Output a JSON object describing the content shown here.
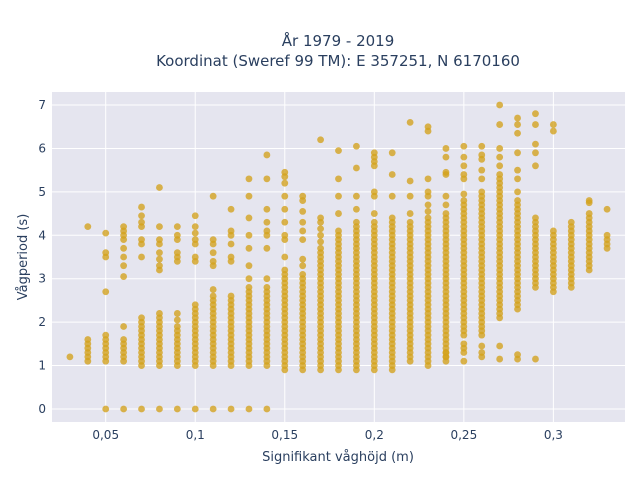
{
  "chart_data": {
    "type": "scatter",
    "title_line1": "År 1979 - 2019",
    "title_line2": "Koordinat (Sweref 99 TM): E 357251, N 6170160",
    "xlabel": "Signifikant våghöjd (m)",
    "ylabel": "Vågperiod (s)",
    "xlim": [
      0.02,
      0.34
    ],
    "ylim": [
      -0.3,
      7.3
    ],
    "x_ticks": [
      0.05,
      0.1,
      0.15,
      0.2,
      0.25,
      0.3
    ],
    "x_tick_labels": [
      "0,05",
      "0,1",
      "0,15",
      "0,2",
      "0,25",
      "0,3"
    ],
    "y_ticks": [
      0,
      1,
      2,
      3,
      4,
      5,
      6,
      7
    ],
    "y_tick_labels": [
      "0",
      "1",
      "2",
      "3",
      "4",
      "5",
      "6",
      "7"
    ],
    "grid": true,
    "colors": {
      "marker": "#d4a21b",
      "plot_bg": "#e5e5ef",
      "grid": "#ffffff",
      "text": "#2a3f5f"
    },
    "columns": [
      {
        "x": 0.03,
        "bands": [
          [
            1.2,
            1.2
          ]
        ],
        "points": []
      },
      {
        "x": 0.04,
        "bands": [
          [
            1.1,
            1.6
          ]
        ],
        "points": [
          4.2
        ]
      },
      {
        "x": 0.05,
        "bands": [
          [
            1.1,
            1.7
          ]
        ],
        "points": [
          0,
          2.7,
          3.5,
          3.6,
          4.05
        ]
      },
      {
        "x": 0.06,
        "bands": [
          [
            1.1,
            1.6
          ]
        ],
        "points": [
          0,
          1.9,
          3.05,
          3.3,
          3.5,
          3.7,
          3.9,
          4.0,
          4.1,
          4.2
        ]
      },
      {
        "x": 0.07,
        "bands": [
          [
            1.0,
            2.1
          ]
        ],
        "points": [
          0,
          3.5,
          3.8,
          3.9,
          4.2,
          4.3,
          4.45,
          4.65
        ]
      },
      {
        "x": 0.08,
        "bands": [
          [
            1.0,
            2.2
          ]
        ],
        "points": [
          0,
          3.2,
          3.3,
          3.45,
          3.6,
          3.8,
          3.9,
          4.2,
          5.1
        ]
      },
      {
        "x": 0.09,
        "bands": [
          [
            1.0,
            1.9
          ]
        ],
        "points": [
          0,
          2.05,
          2.2,
          3.4,
          3.5,
          3.6,
          3.9,
          4.0,
          4.2
        ]
      },
      {
        "x": 0.1,
        "bands": [
          [
            1.0,
            2.4
          ]
        ],
        "points": [
          0,
          3.4,
          3.5,
          3.8,
          3.9,
          4.05,
          4.2,
          4.45
        ]
      },
      {
        "x": 0.11,
        "bands": [
          [
            1.0,
            2.6
          ]
        ],
        "points": [
          0,
          2.75,
          3.3,
          3.4,
          3.6,
          3.8,
          3.9,
          4.9
        ]
      },
      {
        "x": 0.12,
        "bands": [
          [
            1.0,
            2.6
          ]
        ],
        "points": [
          0,
          3.4,
          3.5,
          3.8,
          4.0,
          4.1,
          4.6
        ]
      },
      {
        "x": 0.13,
        "bands": [
          [
            1.0,
            2.8
          ]
        ],
        "points": [
          0,
          3.0,
          3.3,
          3.7,
          4.0,
          4.4,
          4.9,
          5.3
        ]
      },
      {
        "x": 0.14,
        "bands": [
          [
            1.0,
            2.7
          ]
        ],
        "points": [
          0,
          2.8,
          3.0,
          3.7,
          4.0,
          4.1,
          4.3,
          4.6,
          5.3,
          5.85
        ]
      },
      {
        "x": 0.15,
        "bands": [
          [
            0.9,
            3.2
          ]
        ],
        "points": [
          3.5,
          3.9,
          4.0,
          4.3,
          4.6,
          4.9,
          5.2,
          5.35,
          5.45
        ]
      },
      {
        "x": 0.16,
        "bands": [
          [
            0.9,
            3.1
          ]
        ],
        "points": [
          3.3,
          3.45,
          3.9,
          4.1,
          4.3,
          4.55,
          4.8,
          4.9
        ]
      },
      {
        "x": 0.17,
        "bands": [
          [
            0.9,
            3.6
          ]
        ],
        "points": [
          3.7,
          3.85,
          4.0,
          4.15,
          4.3,
          4.4,
          6.2
        ]
      },
      {
        "x": 0.18,
        "bands": [
          [
            0.9,
            4.1
          ]
        ],
        "points": [
          4.5,
          4.9,
          5.3,
          5.95
        ]
      },
      {
        "x": 0.19,
        "bands": [
          [
            0.9,
            4.2
          ]
        ],
        "points": [
          4.3,
          4.6,
          4.9,
          5.55,
          6.05
        ]
      },
      {
        "x": 0.2,
        "bands": [
          [
            0.9,
            4.2
          ]
        ],
        "points": [
          4.3,
          4.5,
          4.9,
          5.0,
          5.6,
          5.7,
          5.8,
          5.9
        ]
      },
      {
        "x": 0.21,
        "bands": [
          [
            0.9,
            4.4
          ]
        ],
        "points": [
          4.9,
          5.4,
          5.9
        ]
      },
      {
        "x": 0.22,
        "bands": [
          [
            1.1,
            4.3
          ]
        ],
        "points": [
          4.5,
          4.9,
          5.25,
          6.6
        ]
      },
      {
        "x": 0.23,
        "bands": [
          [
            1.0,
            4.4
          ]
        ],
        "points": [
          4.55,
          4.7,
          4.9,
          5.0,
          5.3,
          6.4,
          6.5
        ]
      },
      {
        "x": 0.24,
        "bands": [
          [
            1.1,
            4.5
          ]
        ],
        "points": [
          1.2,
          1.3,
          4.7,
          4.9,
          5.4,
          5.45,
          5.8,
          6.0
        ]
      },
      {
        "x": 0.25,
        "bands": [
          [
            1.7,
            4.8
          ]
        ],
        "points": [
          1.1,
          1.3,
          1.4,
          1.5,
          4.95,
          5.3,
          5.4,
          5.6,
          5.8,
          6.05
        ]
      },
      {
        "x": 0.26,
        "bands": [
          [
            1.7,
            5.0
          ]
        ],
        "points": [
          1.2,
          1.3,
          1.45,
          5.3,
          5.5,
          5.75,
          5.85,
          6.05
        ]
      },
      {
        "x": 0.27,
        "bands": [
          [
            2.1,
            5.4
          ]
        ],
        "points": [
          1.15,
          1.45,
          5.6,
          5.8,
          6.0,
          6.55,
          7.0
        ]
      },
      {
        "x": 0.28,
        "bands": [
          [
            2.3,
            4.8
          ]
        ],
        "points": [
          1.15,
          1.25,
          5.0,
          5.3,
          5.5,
          5.9,
          6.35,
          6.55,
          6.7
        ]
      },
      {
        "x": 0.29,
        "bands": [
          [
            2.8,
            4.3
          ]
        ],
        "points": [
          1.15,
          4.4,
          5.6,
          5.9,
          6.1,
          6.55,
          6.8
        ]
      },
      {
        "x": 0.3,
        "bands": [
          [
            2.65,
            4.1
          ]
        ],
        "points": [
          6.4,
          6.55
        ]
      },
      {
        "x": 0.31,
        "bands": [
          [
            2.8,
            4.3
          ]
        ],
        "points": []
      },
      {
        "x": 0.32,
        "bands": [
          [
            3.2,
            4.5
          ]
        ],
        "points": [
          4.75,
          4.8
        ]
      },
      {
        "x": 0.33,
        "bands": [
          [
            3.65,
            4.0
          ]
        ],
        "points": [
          4.6
        ]
      }
    ]
  }
}
